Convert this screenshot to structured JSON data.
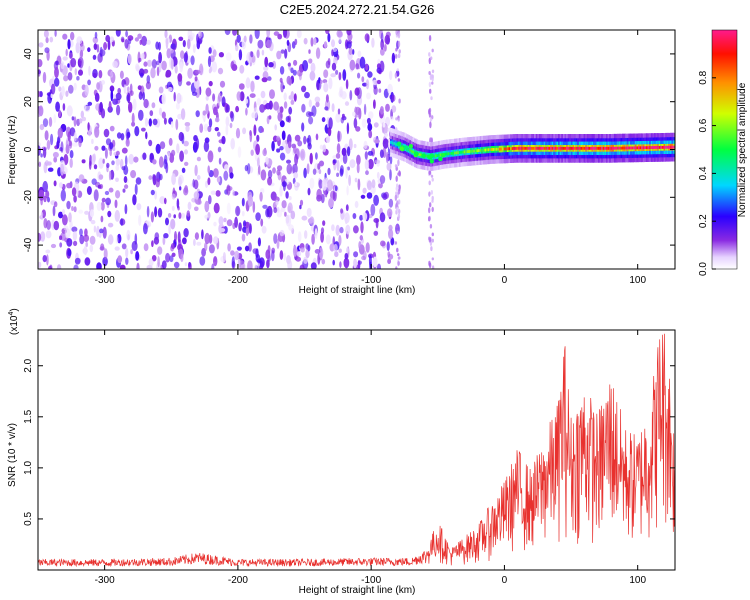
{
  "title": "C2E5.2024.272.21.54.G26",
  "chart_data": [
    {
      "type": "heatmap",
      "xlabel": "Height of straight line (km)",
      "ylabel": "Frequency (Hz)",
      "xlim": [
        -350,
        128
      ],
      "ylim": [
        -50,
        50
      ],
      "xticks": [
        -300,
        -200,
        -100,
        0,
        100
      ],
      "xtick_labels": [
        "-300",
        "-200",
        "-100",
        "0",
        "100"
      ],
      "yticks": [
        -40,
        -20,
        0,
        20,
        40
      ],
      "ytick_labels": [
        "-40",
        "-20",
        "0",
        "20",
        "40"
      ],
      "grid": false,
      "colorbar": {
        "label": "Normalized spectral amplitude",
        "range": [
          0,
          1
        ],
        "ticks": [
          0.0,
          0.2,
          0.4,
          0.6,
          0.8
        ],
        "tick_labels": [
          "0.0",
          "0.2",
          "0.4",
          "0.6",
          "0.8"
        ],
        "colormap": "rainbow"
      },
      "regions": {
        "noise_x_range": [
          -350,
          -80
        ],
        "noise_amplitude": [
          0.02,
          0.2
        ],
        "noise_stripe_x": -55,
        "signal_x_range": [
          -85,
          128
        ],
        "signal_track": [
          {
            "x": -85,
            "y": 3,
            "amplitude": 0.3
          },
          {
            "x": -75,
            "y": 1,
            "amplitude": 0.45
          },
          {
            "x": -65,
            "y": -2,
            "amplitude": 0.5
          },
          {
            "x": -55,
            "y": -3,
            "amplitude": 0.5
          },
          {
            "x": -45,
            "y": -2,
            "amplitude": 0.45
          },
          {
            "x": -30,
            "y": -1,
            "amplitude": 0.5
          },
          {
            "x": -10,
            "y": 0,
            "amplitude": 0.6
          },
          {
            "x": 10,
            "y": 0.5,
            "amplitude": 0.85
          },
          {
            "x": 40,
            "y": 0.5,
            "amplitude": 0.9
          },
          {
            "x": 80,
            "y": 0.5,
            "amplitude": 0.95
          },
          {
            "x": 128,
            "y": 1,
            "amplitude": 0.95
          }
        ]
      }
    },
    {
      "type": "line",
      "xlabel": "Height of straight line (km)",
      "ylabel": "SNR (10 * v/v)",
      "y_multiplier_label": "(x10",
      "y_multiplier_exponent": "4",
      "y_multiplier_close": ")",
      "xlim": [
        -350,
        128
      ],
      "ylim": [
        0,
        2.35
      ],
      "xticks": [
        -300,
        -200,
        -100,
        0,
        100
      ],
      "xtick_labels": [
        "-300",
        "-200",
        "-100",
        "0",
        "100"
      ],
      "yticks": [
        0.5,
        1.0,
        1.5,
        2.0
      ],
      "ytick_labels": [
        "0.5",
        "1.0",
        "1.5",
        "2.0"
      ],
      "grid": false,
      "color": "#e8312e",
      "series": [
        {
          "x": [
            -350,
            -300,
            -250,
            -230,
            -200,
            -150,
            -100,
            -70,
            -60,
            -50,
            -40,
            -30,
            -20,
            -10,
            0,
            10,
            20,
            30,
            40,
            45,
            50,
            60,
            70,
            80,
            90,
            100,
            110,
            118,
            123,
            128
          ],
          "values": [
            0.08,
            0.08,
            0.09,
            0.13,
            0.08,
            0.08,
            0.09,
            0.09,
            0.15,
            0.45,
            0.2,
            0.3,
            0.4,
            0.6,
            0.8,
            1.1,
            0.9,
            1.2,
            1.5,
            2.1,
            1.4,
            1.7,
            1.4,
            1.8,
            1.3,
            1.2,
            1.6,
            2.33,
            2.0,
            1.2
          ]
        }
      ]
    }
  ]
}
